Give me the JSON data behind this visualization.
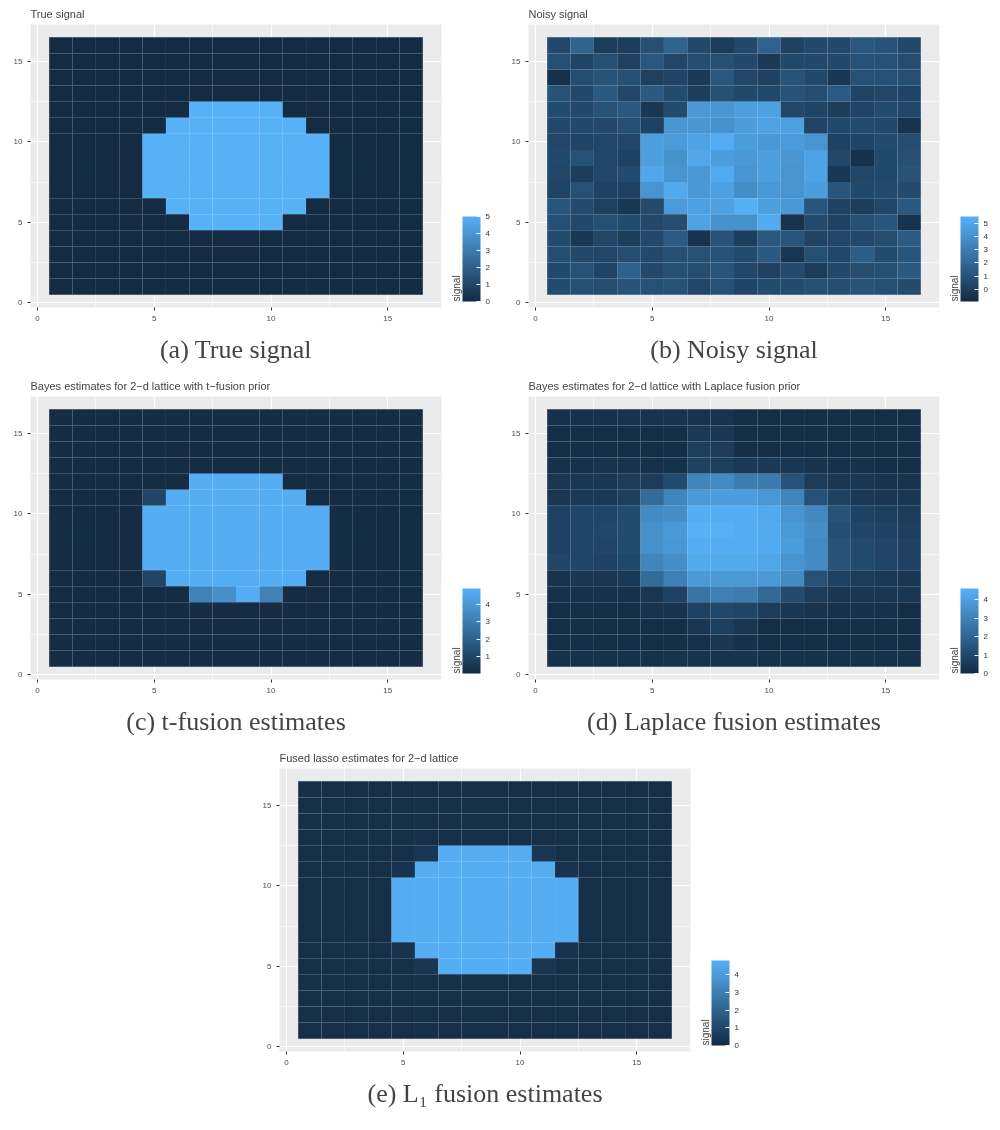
{
  "chart_data": [
    {
      "type": "heatmap",
      "title": "True signal",
      "annotations": [
        "(a) True signal"
      ],
      "clabel": "signal",
      "clim": [
        0,
        5
      ],
      "cticks": [
        0,
        1,
        2,
        3,
        4,
        5
      ],
      "xlim": [
        -0.3,
        17.3
      ],
      "ylim": [
        -0.3,
        17.3
      ],
      "xticks": [
        0,
        5,
        10,
        15
      ],
      "yticks": [
        0,
        5,
        10,
        15
      ],
      "grid": true,
      "x": [
        1,
        2,
        3,
        4,
        5,
        6,
        7,
        8,
        9,
        10,
        11,
        12,
        13,
        14,
        15,
        16
      ],
      "y": [
        16,
        15,
        14,
        13,
        12,
        11,
        10,
        9,
        8,
        7,
        6,
        5,
        4,
        3,
        2,
        1
      ],
      "cells": [
        [
          0,
          0,
          0,
          0,
          0,
          0,
          0,
          0,
          0,
          0,
          0,
          0,
          0,
          0,
          0,
          0
        ],
        [
          0,
          0,
          0,
          0,
          0,
          0,
          0,
          0,
          0,
          0,
          0,
          0,
          0,
          0,
          0,
          0
        ],
        [
          0,
          0,
          0,
          0,
          0,
          0,
          0,
          0,
          0,
          0,
          0,
          0,
          0,
          0,
          0,
          0
        ],
        [
          0,
          0,
          0,
          0,
          0,
          0,
          0,
          0,
          0,
          0,
          0,
          0,
          0,
          0,
          0,
          0
        ],
        [
          0,
          0,
          0,
          0,
          0,
          0,
          5,
          5,
          5,
          5,
          0,
          0,
          0,
          0,
          0,
          0
        ],
        [
          0,
          0,
          0,
          0,
          0,
          5,
          5,
          5,
          5,
          5,
          5,
          0,
          0,
          0,
          0,
          0
        ],
        [
          0,
          0,
          0,
          0,
          5,
          5,
          5,
          5,
          5,
          5,
          5,
          5,
          0,
          0,
          0,
          0
        ],
        [
          0,
          0,
          0,
          0,
          5,
          5,
          5,
          5,
          5,
          5,
          5,
          5,
          0,
          0,
          0,
          0
        ],
        [
          0,
          0,
          0,
          0,
          5,
          5,
          5,
          5,
          5,
          5,
          5,
          5,
          0,
          0,
          0,
          0
        ],
        [
          0,
          0,
          0,
          0,
          5,
          5,
          5,
          5,
          5,
          5,
          5,
          5,
          0,
          0,
          0,
          0
        ],
        [
          0,
          0,
          0,
          0,
          0,
          5,
          5,
          5,
          5,
          5,
          5,
          0,
          0,
          0,
          0,
          0
        ],
        [
          0,
          0,
          0,
          0,
          0,
          0,
          5,
          5,
          5,
          5,
          0,
          0,
          0,
          0,
          0,
          0
        ],
        [
          0,
          0,
          0,
          0,
          0,
          0,
          0,
          0,
          0,
          0,
          0,
          0,
          0,
          0,
          0,
          0
        ],
        [
          0,
          0,
          0,
          0,
          0,
          0,
          0,
          0,
          0,
          0,
          0,
          0,
          0,
          0,
          0,
          0
        ],
        [
          0,
          0,
          0,
          0,
          0,
          0,
          0,
          0,
          0,
          0,
          0,
          0,
          0,
          0,
          0,
          0
        ],
        [
          0,
          0,
          0,
          0,
          0,
          0,
          0,
          0,
          0,
          0,
          0,
          0,
          0,
          0,
          0,
          0
        ]
      ]
    },
    {
      "type": "heatmap",
      "title": "Noisy signal",
      "annotations": [
        "(b) Noisy signal"
      ],
      "clabel": "signal",
      "clim": [
        -0.9,
        5.5
      ],
      "cticks": [
        0,
        1,
        2,
        3,
        4,
        5
      ],
      "xlim": [
        -0.3,
        17.3
      ],
      "ylim": [
        -0.3,
        17.3
      ],
      "xticks": [
        0,
        5,
        10,
        15
      ],
      "yticks": [
        0,
        5,
        10,
        15
      ],
      "grid": true,
      "x": [
        1,
        2,
        3,
        4,
        5,
        6,
        7,
        8,
        9,
        10,
        11,
        12,
        13,
        14,
        15,
        16
      ],
      "y": [
        16,
        15,
        14,
        13,
        12,
        11,
        10,
        9,
        8,
        7,
        6,
        5,
        4,
        3,
        2,
        1
      ],
      "cells": [
        [
          0.5,
          1.8,
          0,
          0,
          0.8,
          1.8,
          0.5,
          0,
          0.5,
          1.7,
          0.2,
          0.5,
          0.5,
          1.2,
          1.0,
          0.5
        ],
        [
          0.8,
          0.3,
          0.8,
          0.2,
          1.2,
          0.4,
          0.7,
          0.8,
          0.5,
          -0.2,
          0.5,
          0.5,
          0.5,
          0.9,
          0.9,
          0.7
        ],
        [
          -0.6,
          0.7,
          1.0,
          0.8,
          0.1,
          0.3,
          -0.2,
          1.2,
          0.4,
          0.2,
          1.0,
          0.5,
          -0.3,
          0.9,
          0.9,
          0.8
        ],
        [
          1.0,
          0.5,
          1.3,
          0.4,
          1.3,
          0.6,
          0,
          0.8,
          0.5,
          0.5,
          1.0,
          0.7,
          1.4,
          0.3,
          0.4,
          0.3
        ],
        [
          0.6,
          0.5,
          1.0,
          1.2,
          -0.3,
          0.6,
          4.3,
          4.2,
          4.6,
          4.7,
          0.4,
          0.3,
          0,
          0.3,
          0.6,
          0.4
        ],
        [
          0.5,
          0.5,
          0.5,
          0.8,
          0.2,
          4.2,
          4.2,
          4.0,
          4.5,
          4.8,
          4.7,
          0.3,
          0.5,
          0.6,
          0.5,
          -0.5
        ],
        [
          0.4,
          0.3,
          0.4,
          0.4,
          4.6,
          4.4,
          4.8,
          5.3,
          4.5,
          4.3,
          4.4,
          4.1,
          0.2,
          0.3,
          0.6,
          0.7
        ],
        [
          0.5,
          0.9,
          0.4,
          0.2,
          4.6,
          4.0,
          5.0,
          4.5,
          4.3,
          4.6,
          4.2,
          4.8,
          0.4,
          -0.6,
          0.5,
          0.8
        ],
        [
          0.4,
          0,
          0.4,
          0.6,
          5.0,
          4.1,
          4.3,
          5.2,
          4.1,
          4.6,
          4.1,
          4.8,
          -0.3,
          0.4,
          0.5,
          1.0
        ],
        [
          0.3,
          0.9,
          0.2,
          0.2,
          4.1,
          5.1,
          4.3,
          4.7,
          3.8,
          4.3,
          4.1,
          4.5,
          1.1,
          0.5,
          0.6,
          0.6
        ],
        [
          1.1,
          0.6,
          0.1,
          -0.3,
          0.6,
          4.4,
          4.7,
          4.7,
          5.4,
          4.6,
          4.3,
          1.1,
          0.2,
          0,
          0.4,
          1.3
        ],
        [
          0.8,
          0.5,
          0.8,
          0.6,
          0.5,
          0.7,
          4.8,
          4.0,
          4.0,
          5.2,
          -0.5,
          0.6,
          0.2,
          0.8,
          1.1,
          -0.5
        ],
        [
          0.6,
          -0.3,
          0.4,
          0,
          0.5,
          1.4,
          -0.5,
          1.0,
          0,
          1.2,
          1.1,
          0.3,
          0.4,
          0.5,
          0.7,
          1.4
        ],
        [
          0.7,
          0.5,
          0.4,
          0.7,
          0.5,
          0.8,
          0.9,
          1.0,
          0.6,
          1.3,
          -0.4,
          0.8,
          0.4,
          1.5,
          0.6,
          1.1
        ],
        [
          0.5,
          0.9,
          0.3,
          1.6,
          0.5,
          0.8,
          0.7,
          1.1,
          0.4,
          0.2,
          0.6,
          -0.1,
          0.5,
          0.7,
          0.8,
          1.3
        ],
        [
          0.6,
          0.8,
          0.7,
          1.0,
          0.9,
          0.9,
          0.4,
          0.9,
          0.3,
          0.6,
          0.6,
          0.8,
          0.7,
          1.0,
          0.8,
          0.6
        ]
      ]
    },
    {
      "type": "heatmap",
      "title": "Bayes estimates for 2−d lattice with t−fusion prior",
      "annotations": [
        "(c) t-fusion estimates"
      ],
      "clabel": "signal",
      "clim": [
        0.05,
        4.9
      ],
      "cticks": [
        1,
        2,
        3,
        4
      ],
      "xlim": [
        -0.3,
        17.3
      ],
      "ylim": [
        -0.3,
        17.3
      ],
      "xticks": [
        0,
        5,
        10,
        15
      ],
      "yticks": [
        0,
        5,
        10,
        15
      ],
      "grid": true,
      "x": [
        1,
        2,
        3,
        4,
        5,
        6,
        7,
        8,
        9,
        10,
        11,
        12,
        13,
        14,
        15,
        16
      ],
      "y": [
        16,
        15,
        14,
        13,
        12,
        11,
        10,
        9,
        8,
        7,
        6,
        5,
        4,
        3,
        2,
        1
      ],
      "cells": [
        [
          0.1,
          0.1,
          0.1,
          0.1,
          0.1,
          0.1,
          0.1,
          0.1,
          0.1,
          0.1,
          0.1,
          0.1,
          0.1,
          0.1,
          0.1,
          0.1
        ],
        [
          0.1,
          0.1,
          0.1,
          0.1,
          0.1,
          0.1,
          0.1,
          0.1,
          0.1,
          0.1,
          0.1,
          0.1,
          0.1,
          0.1,
          0.1,
          0.1
        ],
        [
          0.1,
          0.1,
          0.1,
          0.1,
          0.1,
          0.1,
          0.1,
          0.1,
          0.1,
          0.1,
          0.1,
          0.1,
          0.1,
          0.1,
          0.1,
          0.1
        ],
        [
          0.1,
          0.1,
          0.1,
          0.1,
          0.1,
          0.1,
          0.1,
          0.1,
          0.1,
          0.1,
          0.1,
          0.1,
          0.1,
          0.1,
          0.1,
          0.1
        ],
        [
          0.1,
          0.1,
          0.1,
          0.1,
          0.1,
          0.1,
          4.8,
          4.8,
          4.8,
          4.8,
          0.1,
          0.1,
          0.1,
          0.1,
          0.1,
          0.1
        ],
        [
          0.1,
          0.1,
          0.1,
          0.1,
          1.0,
          4.8,
          4.8,
          4.8,
          4.8,
          4.8,
          4.8,
          0.1,
          0.1,
          0.1,
          0.1,
          0.1
        ],
        [
          0.1,
          0.1,
          0.1,
          0.1,
          4.8,
          4.8,
          4.8,
          4.8,
          4.8,
          4.8,
          4.8,
          4.8,
          0.1,
          0.1,
          0.1,
          0.1
        ],
        [
          0.1,
          0.1,
          0.1,
          0.1,
          4.8,
          4.8,
          4.8,
          4.8,
          4.8,
          4.8,
          4.8,
          4.8,
          0.1,
          0.1,
          0.1,
          0.1
        ],
        [
          0.1,
          0.1,
          0.1,
          0.1,
          4.8,
          4.8,
          4.8,
          4.8,
          4.8,
          4.8,
          4.8,
          4.8,
          0.1,
          0.1,
          0.1,
          0.1
        ],
        [
          0.1,
          0.1,
          0.1,
          0.1,
          4.8,
          4.8,
          4.8,
          4.8,
          4.8,
          4.8,
          4.8,
          4.8,
          0.1,
          0.1,
          0.1,
          0.1
        ],
        [
          0.1,
          0.1,
          0.1,
          0.1,
          1.0,
          4.8,
          4.8,
          4.8,
          4.8,
          4.8,
          4.8,
          0.1,
          0.1,
          0.1,
          0.1,
          0.1
        ],
        [
          0.1,
          0.1,
          0.1,
          0.1,
          0.1,
          0.1,
          3.2,
          3.7,
          4.8,
          3.2,
          0.1,
          0.1,
          0.1,
          0.1,
          0.1,
          0.1
        ],
        [
          0.1,
          0.1,
          0.1,
          0.1,
          0.1,
          0.1,
          0.1,
          0.1,
          0.1,
          0.1,
          0.1,
          0.1,
          0.1,
          0.1,
          0.1,
          0.1
        ],
        [
          0.1,
          0.1,
          0.1,
          0.1,
          0.1,
          0.1,
          0.1,
          0.1,
          0.1,
          0.1,
          0.1,
          0.1,
          0.1,
          0.1,
          0.1,
          0.1
        ],
        [
          0.1,
          0.1,
          0.1,
          0.1,
          0.1,
          0.1,
          0.1,
          0.1,
          0.1,
          0.1,
          0.1,
          0.1,
          0.1,
          0.1,
          0.1,
          0.1
        ],
        [
          0.1,
          0.1,
          0.1,
          0.1,
          0.1,
          0.1,
          0.1,
          0.1,
          0.1,
          0.1,
          0.1,
          0.1,
          0.1,
          0.1,
          0.1,
          0.1
        ]
      ]
    },
    {
      "type": "heatmap",
      "title": "Bayes estimates for 2−d lattice with Laplace fusion prior",
      "annotations": [
        "(d) Laplace fusion estimates"
      ],
      "clabel": "signal",
      "clim": [
        0,
        4.6
      ],
      "cticks": [
        0,
        1,
        2,
        3,
        4
      ],
      "xlim": [
        -0.3,
        17.3
      ],
      "ylim": [
        -0.3,
        17.3
      ],
      "xticks": [
        0,
        5,
        10,
        15
      ],
      "yticks": [
        0,
        5,
        10,
        15
      ],
      "grid": true,
      "x": [
        1,
        2,
        3,
        4,
        5,
        6,
        7,
        8,
        9,
        10,
        11,
        12,
        13,
        14,
        15,
        16
      ],
      "y": [
        16,
        15,
        14,
        13,
        12,
        11,
        10,
        9,
        8,
        7,
        6,
        5,
        4,
        3,
        2,
        1
      ],
      "cells": [
        [
          0.2,
          0.2,
          0.2,
          0.3,
          0.3,
          0.3,
          0.3,
          0.3,
          0.1,
          0.1,
          0.1,
          0.1,
          0.1,
          0.1,
          0.1,
          0.1
        ],
        [
          0.1,
          0.1,
          0.1,
          0.1,
          0.1,
          0.1,
          0.5,
          0.4,
          0.1,
          0.1,
          0.1,
          0.1,
          0.1,
          0.1,
          0.1,
          0.1
        ],
        [
          0.1,
          0.1,
          0.1,
          0.1,
          0.1,
          0.1,
          0.7,
          0.6,
          0.1,
          0.1,
          0.1,
          0.1,
          0.1,
          0.1,
          0.1,
          0.1
        ],
        [
          0.2,
          0.2,
          0.3,
          0.3,
          0.2,
          0.2,
          0.8,
          0.7,
          0.5,
          0.5,
          0.4,
          0.3,
          0.2,
          0.2,
          0.1,
          0.1
        ],
        [
          0.4,
          0.4,
          0.4,
          0.6,
          0.6,
          1.1,
          3.1,
          3.3,
          2.8,
          2.7,
          1.4,
          0.6,
          0.4,
          0.4,
          0.3,
          0.3
        ],
        [
          0.4,
          0.5,
          0.5,
          0.7,
          2.2,
          3.1,
          3.8,
          3.9,
          3.9,
          3.7,
          3.1,
          1.3,
          0.8,
          0.5,
          0.4,
          0.4
        ],
        [
          0.8,
          0.9,
          0.9,
          1.1,
          3.3,
          3.4,
          4.5,
          4.5,
          4.5,
          4.3,
          3.6,
          3.2,
          1.4,
          0.8,
          0.7,
          0.6
        ],
        [
          0.8,
          0.9,
          1.0,
          1.1,
          3.5,
          3.8,
          4.6,
          4.6,
          4.5,
          4.4,
          3.8,
          3.4,
          1.2,
          0.9,
          0.8,
          0.7
        ],
        [
          0.8,
          0.9,
          0.9,
          1.1,
          3.5,
          3.7,
          4.5,
          4.5,
          4.5,
          4.4,
          3.9,
          3.3,
          1.4,
          1.1,
          0.9,
          0.8
        ],
        [
          0.9,
          0.9,
          0.8,
          1.0,
          3.1,
          3.4,
          4.3,
          4.3,
          4.3,
          4.2,
          3.6,
          3.3,
          1.4,
          1.1,
          0.9,
          0.8
        ],
        [
          0.3,
          0.4,
          0.4,
          0.5,
          2.2,
          2.9,
          3.8,
          3.8,
          3.8,
          3.8,
          3.3,
          1.3,
          0.8,
          0.6,
          0.5,
          0.4
        ],
        [
          0.2,
          0.2,
          0.2,
          0.2,
          0.4,
          0.8,
          2.5,
          2.9,
          2.8,
          2.1,
          1.1,
          0.6,
          0.4,
          0.4,
          0.4,
          0.4
        ],
        [
          0.1,
          0.1,
          0.1,
          0.1,
          0.3,
          0.3,
          0.8,
          1.0,
          0.9,
          0.6,
          0.4,
          0.3,
          0.2,
          0.2,
          0.2,
          0.1
        ],
        [
          0.1,
          0.1,
          0.1,
          0.1,
          0.1,
          0.1,
          0.4,
          0.7,
          0.4,
          0.1,
          0.1,
          0.1,
          0.1,
          0.1,
          0.1,
          0.1
        ],
        [
          0.1,
          0.1,
          0.1,
          0.1,
          0.1,
          0.1,
          0.2,
          0.4,
          0.2,
          0.1,
          0.1,
          0.1,
          0.1,
          0.1,
          0.1,
          0.1
        ],
        [
          0.2,
          0.2,
          0.2,
          0.2,
          0.2,
          0.3,
          0.3,
          0.3,
          0.3,
          0.2,
          0.2,
          0.2,
          0.2,
          0.2,
          0.2,
          0.2
        ]
      ]
    },
    {
      "type": "heatmap",
      "title": "Fused lasso estimates for 2−d lattice",
      "annotations": [
        "(e) L₁ fusion estimates"
      ],
      "clabel": "signal",
      "clim": [
        0,
        4.8
      ],
      "cticks": [
        0,
        1,
        2,
        3,
        4
      ],
      "xlim": [
        -0.3,
        17.3
      ],
      "ylim": [
        -0.3,
        17.3
      ],
      "xticks": [
        0,
        5,
        10,
        15
      ],
      "yticks": [
        0,
        5,
        10,
        15
      ],
      "grid": true,
      "x": [
        1,
        2,
        3,
        4,
        5,
        6,
        7,
        8,
        9,
        10,
        11,
        12,
        13,
        14,
        15,
        16
      ],
      "y": [
        16,
        15,
        14,
        13,
        12,
        11,
        10,
        9,
        8,
        7,
        6,
        5,
        4,
        3,
        2,
        1
      ],
      "cells": [
        [
          0.15,
          0.15,
          0.15,
          0.15,
          0.15,
          0.15,
          0.15,
          0.15,
          0.15,
          0.15,
          0.15,
          0.15,
          0.15,
          0.15,
          0.15,
          0.15
        ],
        [
          0.15,
          0.15,
          0.15,
          0.15,
          0.15,
          0.15,
          0.15,
          0.15,
          0.15,
          0.15,
          0.15,
          0.15,
          0.15,
          0.15,
          0.15,
          0.15
        ],
        [
          0.15,
          0.15,
          0.15,
          0.15,
          0.15,
          0.15,
          0.15,
          0.15,
          0.15,
          0.15,
          0.15,
          0.15,
          0.15,
          0.15,
          0.15,
          0.15
        ],
        [
          0.15,
          0.15,
          0.15,
          0.15,
          0.15,
          0.15,
          0.15,
          0.15,
          0.15,
          0.15,
          0.15,
          0.15,
          0.15,
          0.15,
          0.15,
          0.15
        ],
        [
          0.15,
          0.15,
          0.15,
          0.15,
          0.15,
          0.4,
          4.7,
          4.7,
          4.7,
          4.7,
          0.4,
          0.15,
          0.15,
          0.15,
          0.15,
          0.15
        ],
        [
          0.15,
          0.15,
          0.15,
          0.15,
          0.3,
          4.7,
          4.7,
          4.7,
          4.7,
          4.7,
          4.7,
          0.3,
          0.15,
          0.15,
          0.15,
          0.15
        ],
        [
          0.15,
          0.15,
          0.15,
          0.15,
          4.7,
          4.7,
          4.7,
          4.7,
          4.7,
          4.7,
          4.7,
          4.7,
          0.15,
          0.15,
          0.15,
          0.15
        ],
        [
          0.15,
          0.15,
          0.15,
          0.15,
          4.7,
          4.7,
          4.7,
          4.7,
          4.7,
          4.7,
          4.7,
          4.7,
          0.15,
          0.15,
          0.15,
          0.15
        ],
        [
          0.15,
          0.15,
          0.15,
          0.15,
          4.7,
          4.7,
          4.7,
          4.7,
          4.7,
          4.7,
          4.7,
          4.7,
          0.15,
          0.15,
          0.15,
          0.15
        ],
        [
          0.15,
          0.15,
          0.15,
          0.15,
          4.7,
          4.7,
          4.7,
          4.7,
          4.7,
          4.7,
          4.7,
          4.7,
          0.15,
          0.15,
          0.15,
          0.15
        ],
        [
          0.15,
          0.15,
          0.15,
          0.15,
          0.3,
          4.7,
          4.7,
          4.7,
          4.7,
          4.7,
          4.7,
          0.3,
          0.15,
          0.15,
          0.15,
          0.15
        ],
        [
          0.15,
          0.15,
          0.15,
          0.15,
          0.15,
          0.4,
          4.7,
          4.7,
          4.7,
          4.7,
          0.4,
          0.15,
          0.15,
          0.15,
          0.15,
          0.15
        ],
        [
          0.15,
          0.15,
          0.15,
          0.15,
          0.15,
          0.15,
          0.15,
          0.15,
          0.15,
          0.15,
          0.15,
          0.15,
          0.15,
          0.15,
          0.15,
          0.15
        ],
        [
          0.15,
          0.15,
          0.15,
          0.15,
          0.15,
          0.15,
          0.15,
          0.15,
          0.15,
          0.15,
          0.15,
          0.15,
          0.15,
          0.15,
          0.15,
          0.15
        ],
        [
          0.15,
          0.15,
          0.15,
          0.15,
          0.15,
          0.15,
          0.15,
          0.15,
          0.15,
          0.15,
          0.15,
          0.15,
          0.15,
          0.15,
          0.15,
          0.15
        ],
        [
          0.15,
          0.15,
          0.15,
          0.15,
          0.15,
          0.15,
          0.15,
          0.15,
          0.15,
          0.15,
          0.15,
          0.15,
          0.15,
          0.15,
          0.15,
          0.15
        ]
      ]
    }
  ]
}
